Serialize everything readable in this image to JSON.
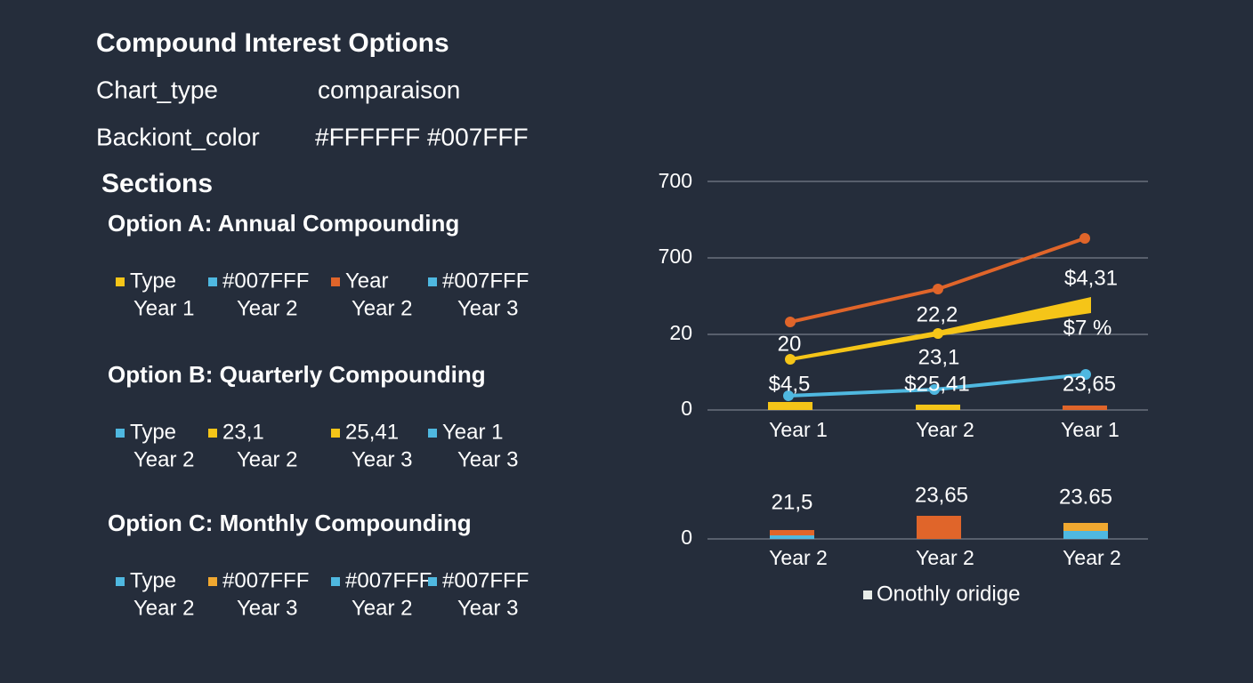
{
  "header": {
    "title": "Compound Interest Options",
    "rows": [
      {
        "key": "Chart_type",
        "value": "comparaison"
      },
      {
        "key": "Backiont_color",
        "value": "#FFFFFF #007FFF"
      }
    ]
  },
  "sections": {
    "title": "Sections",
    "options": [
      {
        "title": "Option A: Annual Compounding",
        "items": [
          {
            "label": "Type",
            "sub": "Year 1",
            "color": "#f5c518"
          },
          {
            "label": "#007FFF",
            "sub": "Year 2",
            "color": "#4fb8e0"
          },
          {
            "label": "Year",
            "sub": "Year 2",
            "color": "#e0652a"
          },
          {
            "label": "#007FFF",
            "sub": "Year 3",
            "color": "#4fb8e0"
          }
        ]
      },
      {
        "title": "Option B: Quarterly Compounding",
        "items": [
          {
            "label": "Type",
            "sub": "Year 2",
            "color": "#4fb8e0"
          },
          {
            "label": "23,1",
            "sub": "Year 2",
            "color": "#f5c518"
          },
          {
            "label": "25,41",
            "sub": "Year 3",
            "color": "#f5c518"
          },
          {
            "label": "Year 1",
            "sub": "Year 3",
            "color": "#4fb8e0"
          }
        ]
      },
      {
        "title": "Option C: Monthly Compounding",
        "items": [
          {
            "label": "Type",
            "sub": "Year 2",
            "color": "#4fb8e0"
          },
          {
            "label": "#007FFF",
            "sub": "Year 3",
            "color": "#f0a830"
          },
          {
            "label": "#007FFF",
            "sub": "Year 2",
            "color": "#4fb8e0"
          },
          {
            "label": "#007FFF",
            "sub": "Year 3",
            "color": "#4fb8e0"
          }
        ]
      }
    ]
  },
  "charts": [
    {
      "yticks": [
        "700",
        "700",
        "20",
        "0"
      ],
      "x": [
        "Year 1",
        "Year 2",
        "Year 1"
      ],
      "labels": [
        "20",
        "22,2",
        "$4,31",
        "$7 %",
        "23,1",
        "$4,5",
        "$25,41",
        "23,65"
      ]
    },
    {
      "yticks": [
        "0"
      ],
      "x": [
        "Year 2",
        "Year 2",
        "Year 2"
      ],
      "labels": [
        "21,5",
        "23,65",
        "23.65"
      ],
      "legend": "Onothly oridige"
    }
  ]
}
